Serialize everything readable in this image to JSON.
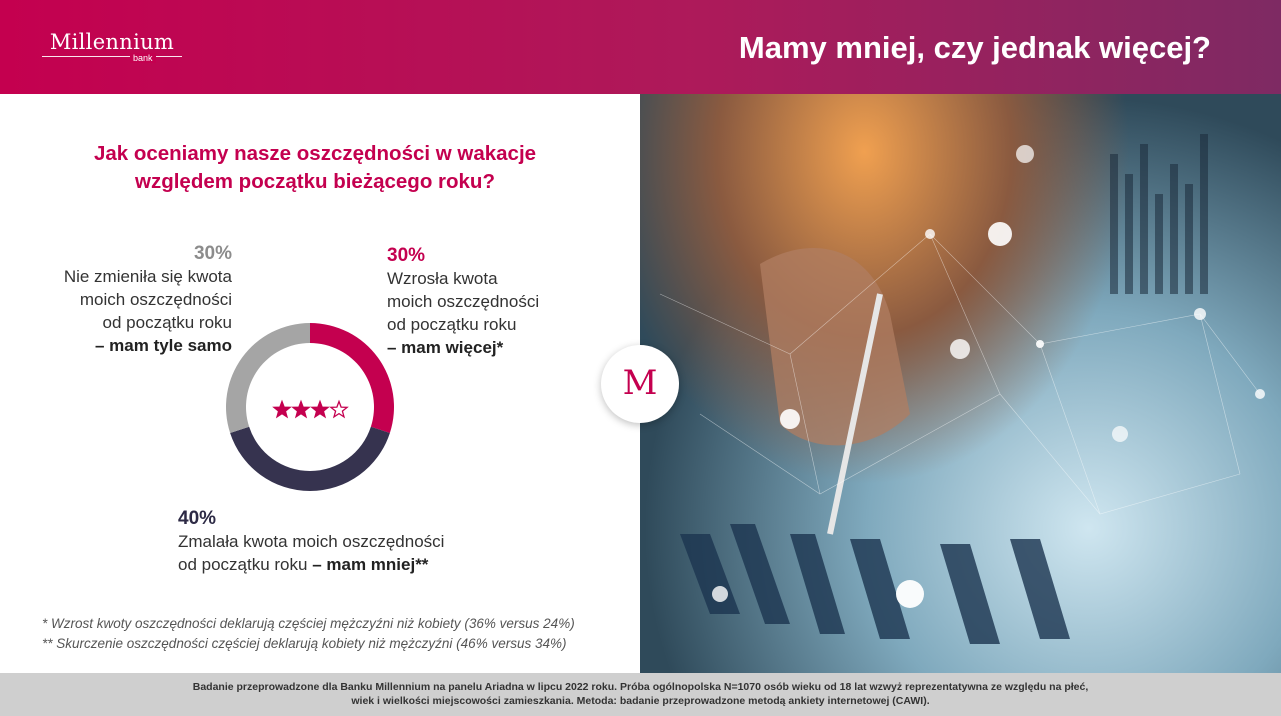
{
  "header": {
    "logo_name": "Millennium",
    "logo_sub": "bank",
    "title": "Mamy mniej, czy jednak więcej?"
  },
  "colors": {
    "accent": "#c4004f",
    "grey": "#a5a5a5",
    "navy": "#36334f"
  },
  "question": {
    "line1": "Jak oceniamy nasze oszczędności w wakacje",
    "line2": "względem początku bieżącego roku?"
  },
  "chart_data": {
    "type": "pie",
    "variant": "donut",
    "center_icon": "three-of-four-stars-icon",
    "center_rating": {
      "filled": 3,
      "total": 4
    },
    "slices": [
      {
        "pct_label": "30%",
        "value": 30,
        "color": "#c4004f",
        "lines": [
          "Wzrosła kwota",
          "moich oszczędności",
          "od początku roku"
        ],
        "strong": "– mam więcej*"
      },
      {
        "pct_label": "40%",
        "value": 40,
        "color": "#36334f",
        "lines": [
          "Zmalała kwota moich oszczędności",
          "od początku roku"
        ],
        "strong": "– mam mniej**"
      },
      {
        "pct_label": "30%",
        "value": 30,
        "color": "#a5a5a5",
        "lines": [
          "Nie zmieniła się kwota",
          "moich oszczędności",
          "od początku roku"
        ],
        "strong": "– mam tyle samo"
      }
    ]
  },
  "notes": {
    "note1": "*   Wzrost kwoty oszczędności deklarują częściej mężczyźni niż kobiety (36% versus 24%)",
    "note2": "** Skurczenie oszczędności częściej deklarują kobiety niż mężczyźni (46% versus 34%)"
  },
  "badge": {
    "letter": "M"
  },
  "footer": {
    "line1": "Badanie przeprowadzone dla Banku Millennium na panelu Ariadna w lipcu 2022 roku. Próba ogólnopolska N=1070 osób wieku od 18 lat wzwyż reprezentatywna ze względu na płeć,",
    "line2": "wiek i wielkości miejscowości zamieszkania. Metoda: badanie przeprowadzone metodą ankiety internetowej (CAWI)."
  }
}
